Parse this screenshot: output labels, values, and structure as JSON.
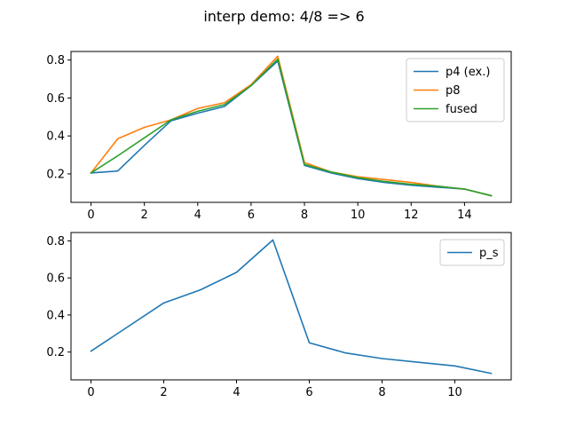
{
  "figure": {
    "title": "interp demo: 4/8 => 6"
  },
  "colors": {
    "blue": "#1f77b4",
    "orange": "#ff7f0e",
    "green": "#2ca02c"
  },
  "chart_data": [
    {
      "type": "line",
      "xlim": [
        -0.75,
        15.75
      ],
      "ylim": [
        0.05,
        0.845
      ],
      "xticks": [
        0,
        2,
        4,
        6,
        8,
        10,
        12,
        14
      ],
      "yticks": [
        0.2,
        0.4,
        0.6,
        0.8
      ],
      "ytick_labels": [
        "0.2",
        "0.4",
        "0.6",
        "0.8"
      ],
      "legend_position": "upper right",
      "series": [
        {
          "name": "p4 (ex.)",
          "color": "#1f77b4",
          "x": [
            0,
            1,
            2,
            3,
            4,
            5,
            6,
            7,
            8,
            9,
            10,
            11,
            12,
            13,
            14,
            15
          ],
          "y": [
            0.205,
            0.215,
            0.35,
            0.48,
            0.52,
            0.555,
            0.665,
            0.795,
            0.245,
            0.205,
            0.175,
            0.155,
            0.14,
            0.13,
            0.12,
            0.085
          ]
        },
        {
          "name": "p8",
          "color": "#ff7f0e",
          "x": [
            0,
            1,
            2,
            3,
            4,
            5,
            6,
            7,
            8,
            9,
            10,
            11,
            12,
            13,
            14,
            15
          ],
          "y": [
            0.205,
            0.385,
            0.445,
            0.485,
            0.545,
            0.575,
            0.67,
            0.82,
            0.26,
            0.21,
            0.185,
            0.17,
            0.155,
            0.135,
            0.12,
            0.085
          ]
        },
        {
          "name": "fused",
          "color": "#2ca02c",
          "x": [
            0,
            1,
            2,
            3,
            4,
            5,
            6,
            7,
            8,
            9,
            10,
            11,
            12,
            13,
            14,
            15
          ],
          "y": [
            0.205,
            0.295,
            0.39,
            0.485,
            0.53,
            0.565,
            0.665,
            0.805,
            0.25,
            0.21,
            0.18,
            0.16,
            0.145,
            0.135,
            0.12,
            0.085
          ]
        }
      ]
    },
    {
      "type": "line",
      "xlim": [
        -0.55,
        11.55
      ],
      "ylim": [
        0.05,
        0.845
      ],
      "xticks": [
        0,
        2,
        4,
        6,
        8,
        10
      ],
      "yticks": [
        0.2,
        0.4,
        0.6,
        0.8
      ],
      "ytick_labels": [
        "0.2",
        "0.4",
        "0.6",
        "0.8"
      ],
      "legend_position": "upper right",
      "series": [
        {
          "name": "p_s",
          "color": "#1f77b4",
          "x": [
            0,
            1,
            2,
            3,
            4,
            5,
            6,
            7,
            8,
            9,
            10,
            11
          ],
          "y": [
            0.205,
            0.335,
            0.465,
            0.535,
            0.63,
            0.805,
            0.25,
            0.195,
            0.165,
            0.145,
            0.125,
            0.085
          ]
        }
      ]
    }
  ]
}
